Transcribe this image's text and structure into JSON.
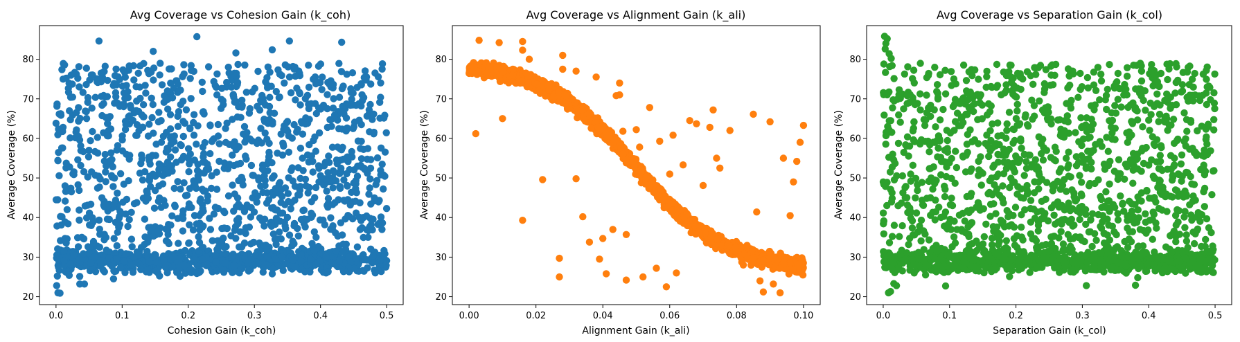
{
  "chart_data": [
    {
      "type": "scatter",
      "title": "Avg Coverage vs Cohesion Gain (k_coh)",
      "xlabel": "Cohesion Gain (k_coh)",
      "ylabel": "Average Coverage (%)",
      "xlim": [
        -0.025,
        0.525
      ],
      "ylim": [
        18.0,
        88.5
      ],
      "xticks": [
        0.0,
        0.1,
        0.2,
        0.3,
        0.4,
        0.5
      ],
      "xtick_labels": [
        "0.0",
        "0.1",
        "0.2",
        "0.3",
        "0.4",
        "0.5"
      ],
      "yticks": [
        20,
        30,
        40,
        50,
        60,
        70,
        80
      ],
      "ytick_labels": [
        "20",
        "30",
        "40",
        "50",
        "60",
        "70",
        "80"
      ],
      "grid": false,
      "color": "#1f77b4",
      "distribution": {
        "x_range": [
          0.0,
          0.5
        ],
        "n_points": 2000,
        "shape": "uniform spread between 27 and 79 with a dense band near 26-32",
        "band_center": 29,
        "upper_limit": 79,
        "outliers": [
          [
            0.065,
            84.6
          ],
          [
            0.213,
            85.7
          ],
          [
            0.353,
            84.6
          ],
          [
            0.432,
            84.3
          ],
          [
            0.327,
            82.4
          ],
          [
            0.147,
            82.0
          ],
          [
            0.272,
            81.6
          ],
          [
            0.003,
            21.0
          ],
          [
            0.006,
            20.9
          ],
          [
            0.001,
            22.8
          ],
          [
            0.036,
            23.2
          ],
          [
            0.043,
            23.2
          ],
          [
            0.087,
            24.5
          ],
          [
            0.002,
            25.2
          ]
        ]
      }
    },
    {
      "type": "scatter",
      "title": "Avg Coverage vs Alignment Gain (k_ali)",
      "xlabel": "Alignment Gain (k_ali)",
      "ylabel": "Average Coverage (%)",
      "xlim": [
        -0.005,
        0.105
      ],
      "ylim": [
        18.0,
        88.5
      ],
      "xticks": [
        0.0,
        0.02,
        0.04,
        0.06,
        0.08,
        0.1
      ],
      "xtick_labels": [
        "0.00",
        "0.02",
        "0.04",
        "0.06",
        "0.08",
        "0.10"
      ],
      "yticks": [
        20,
        30,
        40,
        50,
        60,
        70,
        80
      ],
      "ytick_labels": [
        "20",
        "30",
        "40",
        "50",
        "60",
        "70",
        "80"
      ],
      "grid": false,
      "color": "#ff7f0e",
      "distribution": {
        "x_range": [
          0.0,
          0.1
        ],
        "n_points": 2000,
        "shape": "decreasing sigmoid curve from about 79% at 0.00 to about 26.5% at 0.10, midpoint near 0.05",
        "curve_start": 79,
        "curve_end": 26.5,
        "midpoint": 0.05,
        "outliers": [
          [
            0.002,
            61.2
          ],
          [
            0.003,
            84.8
          ],
          [
            0.009,
            84.2
          ],
          [
            0.016,
            84.5
          ],
          [
            0.016,
            82.3
          ],
          [
            0.018,
            80.0
          ],
          [
            0.017,
            76.5
          ],
          [
            0.01,
            65.0
          ],
          [
            0.016,
            39.3
          ],
          [
            0.022,
            49.6
          ],
          [
            0.027,
            25.0
          ],
          [
            0.027,
            29.7
          ],
          [
            0.028,
            81.0
          ],
          [
            0.028,
            77.5
          ],
          [
            0.032,
            77.0
          ],
          [
            0.032,
            49.8
          ],
          [
            0.034,
            40.2
          ],
          [
            0.036,
            33.8
          ],
          [
            0.038,
            75.5
          ],
          [
            0.039,
            29.5
          ],
          [
            0.04,
            34.7
          ],
          [
            0.041,
            25.8
          ],
          [
            0.042,
            62.0
          ],
          [
            0.043,
            37.0
          ],
          [
            0.044,
            70.8
          ],
          [
            0.045,
            74.0
          ],
          [
            0.045,
            71.0
          ],
          [
            0.046,
            61.8
          ],
          [
            0.047,
            35.7
          ],
          [
            0.047,
            24.2
          ],
          [
            0.05,
            62.2
          ],
          [
            0.051,
            57.8
          ],
          [
            0.052,
            25.0
          ],
          [
            0.054,
            67.8
          ],
          [
            0.056,
            27.2
          ],
          [
            0.057,
            59.3
          ],
          [
            0.059,
            22.5
          ],
          [
            0.06,
            51.0
          ],
          [
            0.061,
            60.8
          ],
          [
            0.062,
            26.0
          ],
          [
            0.064,
            53.3
          ],
          [
            0.066,
            64.5
          ],
          [
            0.068,
            63.7
          ],
          [
            0.07,
            48.1
          ],
          [
            0.072,
            62.8
          ],
          [
            0.073,
            67.2
          ],
          [
            0.074,
            55.0
          ],
          [
            0.075,
            52.5
          ],
          [
            0.078,
            62.0
          ],
          [
            0.082,
            28.0
          ],
          [
            0.085,
            66.1
          ],
          [
            0.086,
            41.4
          ],
          [
            0.087,
            24.0
          ],
          [
            0.088,
            21.2
          ],
          [
            0.09,
            64.2
          ],
          [
            0.091,
            23.2
          ],
          [
            0.093,
            21.0
          ],
          [
            0.094,
            55.0
          ],
          [
            0.096,
            40.5
          ],
          [
            0.097,
            49.0
          ],
          [
            0.098,
            54.2
          ],
          [
            0.099,
            59.0
          ],
          [
            0.1,
            63.3
          ]
        ]
      }
    },
    {
      "type": "scatter",
      "title": "Avg Coverage vs Separation Gain (k_col)",
      "xlabel": "Separation Gain (k_col)",
      "ylabel": "Average Coverage (%)",
      "xlim": [
        -0.025,
        0.525
      ],
      "ylim": [
        18.0,
        88.5
      ],
      "xticks": [
        0.0,
        0.1,
        0.2,
        0.3,
        0.4,
        0.5
      ],
      "xtick_labels": [
        "0.0",
        "0.1",
        "0.2",
        "0.3",
        "0.4",
        "0.5"
      ],
      "yticks": [
        20,
        30,
        40,
        50,
        60,
        70,
        80
      ],
      "ytick_labels": [
        "20",
        "30",
        "40",
        "50",
        "60",
        "70",
        "80"
      ],
      "grid": false,
      "color": "#2ca02c",
      "distribution": {
        "x_range": [
          0.0,
          0.5
        ],
        "n_points": 2000,
        "shape": "uniform spread between 27 and 79 with a dense band near 26-32 and a high cluster near x=0",
        "band_center": 29,
        "upper_limit": 79,
        "outliers": [
          [
            0.002,
            85.8
          ],
          [
            0.006,
            85.2
          ],
          [
            0.004,
            84.0
          ],
          [
            0.003,
            82.6
          ],
          [
            0.009,
            81.4
          ],
          [
            0.012,
            80.2
          ],
          [
            0.008,
            21.0
          ],
          [
            0.011,
            21.3
          ],
          [
            0.016,
            23.3
          ],
          [
            0.02,
            22.8
          ],
          [
            0.094,
            22.7
          ],
          [
            0.306,
            22.8
          ],
          [
            0.38,
            22.9
          ],
          [
            0.001,
            48.4
          ],
          [
            0.0,
            49.0
          ]
        ]
      }
    }
  ]
}
